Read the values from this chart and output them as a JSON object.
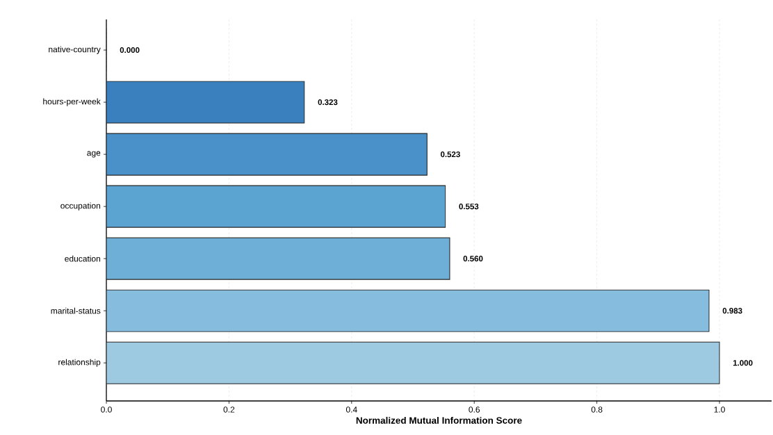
{
  "chart_data": {
    "type": "bar",
    "orientation": "horizontal",
    "xlabel": "Normalized Mutual Information Score",
    "categories": [
      "native-country",
      "hours-per-week",
      "age",
      "occupation",
      "education",
      "marital-status",
      "relationship"
    ],
    "values": [
      0.0,
      0.323,
      0.523,
      0.553,
      0.56,
      0.983,
      1.0
    ],
    "value_labels": [
      "0.000",
      "0.323",
      "0.523",
      "0.553",
      "0.560",
      "0.983",
      "1.000"
    ],
    "colors": [
      "#2f6fb0",
      "#3a80bf",
      "#4a91c9",
      "#5ba3d0",
      "#6eafd7",
      "#86bcdd",
      "#9ecae1"
    ],
    "xlim": [
      0,
      1.085
    ],
    "xticks": [
      {
        "value": 0,
        "label": "0.0"
      },
      {
        "value": 0.2,
        "label": "0.2"
      },
      {
        "value": 0.4,
        "label": "0.4"
      },
      {
        "value": 0.6,
        "label": "0.6"
      },
      {
        "value": 0.8,
        "label": "0.8"
      },
      {
        "value": 1.0,
        "label": "1.0"
      }
    ],
    "grid": "x"
  }
}
